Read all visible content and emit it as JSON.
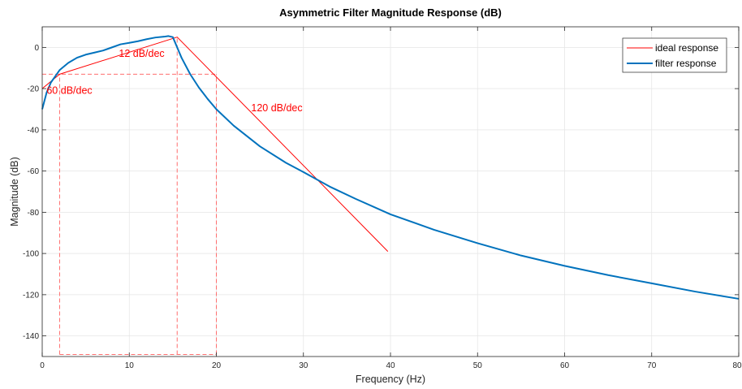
{
  "chart_data": {
    "type": "line",
    "title": "Asymmetric Filter Magnitude Response (dB)",
    "xlabel": "Frequency (Hz)",
    "ylabel": "Magnitude (dB)",
    "xlim": [
      0,
      80
    ],
    "ylim": [
      -150,
      10
    ],
    "xticks": [
      0,
      10,
      20,
      30,
      40,
      50,
      60,
      70,
      80
    ],
    "yticks": [
      -140,
      -120,
      -100,
      -80,
      -60,
      -40,
      -20,
      0
    ],
    "grid": true,
    "legend": {
      "placement": "top-right",
      "entries": [
        "ideal response",
        "filter response"
      ]
    },
    "series": [
      {
        "name": "ideal response",
        "color": "#ff0000",
        "x": [
          0,
          2,
          15.5,
          39.7
        ],
        "y": [
          -20,
          -13,
          5,
          -99
        ]
      },
      {
        "name": "filter response",
        "color": "#0072bd",
        "x": [
          0,
          0.5,
          1,
          1.5,
          2,
          3,
          4,
          5,
          6,
          7,
          8,
          9,
          10,
          11,
          12,
          13,
          14,
          14.5,
          15,
          15.5,
          16,
          17,
          18,
          19,
          20,
          22,
          25,
          28,
          30,
          33,
          36,
          40,
          45,
          50,
          55,
          60,
          65,
          70,
          75,
          80
        ],
        "y": [
          -30,
          -22,
          -17,
          -14,
          -11,
          -7.5,
          -5,
          -3.5,
          -2.5,
          -1.5,
          0,
          1.5,
          2.2,
          3,
          4,
          4.8,
          5.2,
          5.5,
          5,
          0,
          -5,
          -13,
          -19.5,
          -25,
          -30,
          -38,
          -48,
          -56,
          -60.5,
          -67.5,
          -73.5,
          -81,
          -88.5,
          -95,
          -101,
          -106,
          -110.5,
          -114.5,
          -118.5,
          -122
        ]
      }
    ],
    "guides": {
      "color": "#ff6f6f",
      "lines": [
        {
          "x": [
            2,
            2
          ],
          "y": [
            -149,
            -13
          ]
        },
        {
          "x": [
            15.5,
            15.5
          ],
          "y": [
            -149,
            5
          ]
        },
        {
          "x": [
            20,
            20
          ],
          "y": [
            -149,
            -13
          ]
        },
        {
          "x": [
            0,
            20
          ],
          "y": [
            -13,
            -13
          ]
        },
        {
          "x": [
            2,
            20
          ],
          "y": [
            -149,
            -149
          ]
        }
      ]
    },
    "annotations": [
      {
        "text": "12 dB/dec",
        "x": 8.8,
        "y": -4.5
      },
      {
        "text": "60 dB/dec",
        "x": 0.5,
        "y": -22.5
      },
      {
        "text": "120 dB/dec",
        "x": 24,
        "y": -31
      }
    ]
  }
}
